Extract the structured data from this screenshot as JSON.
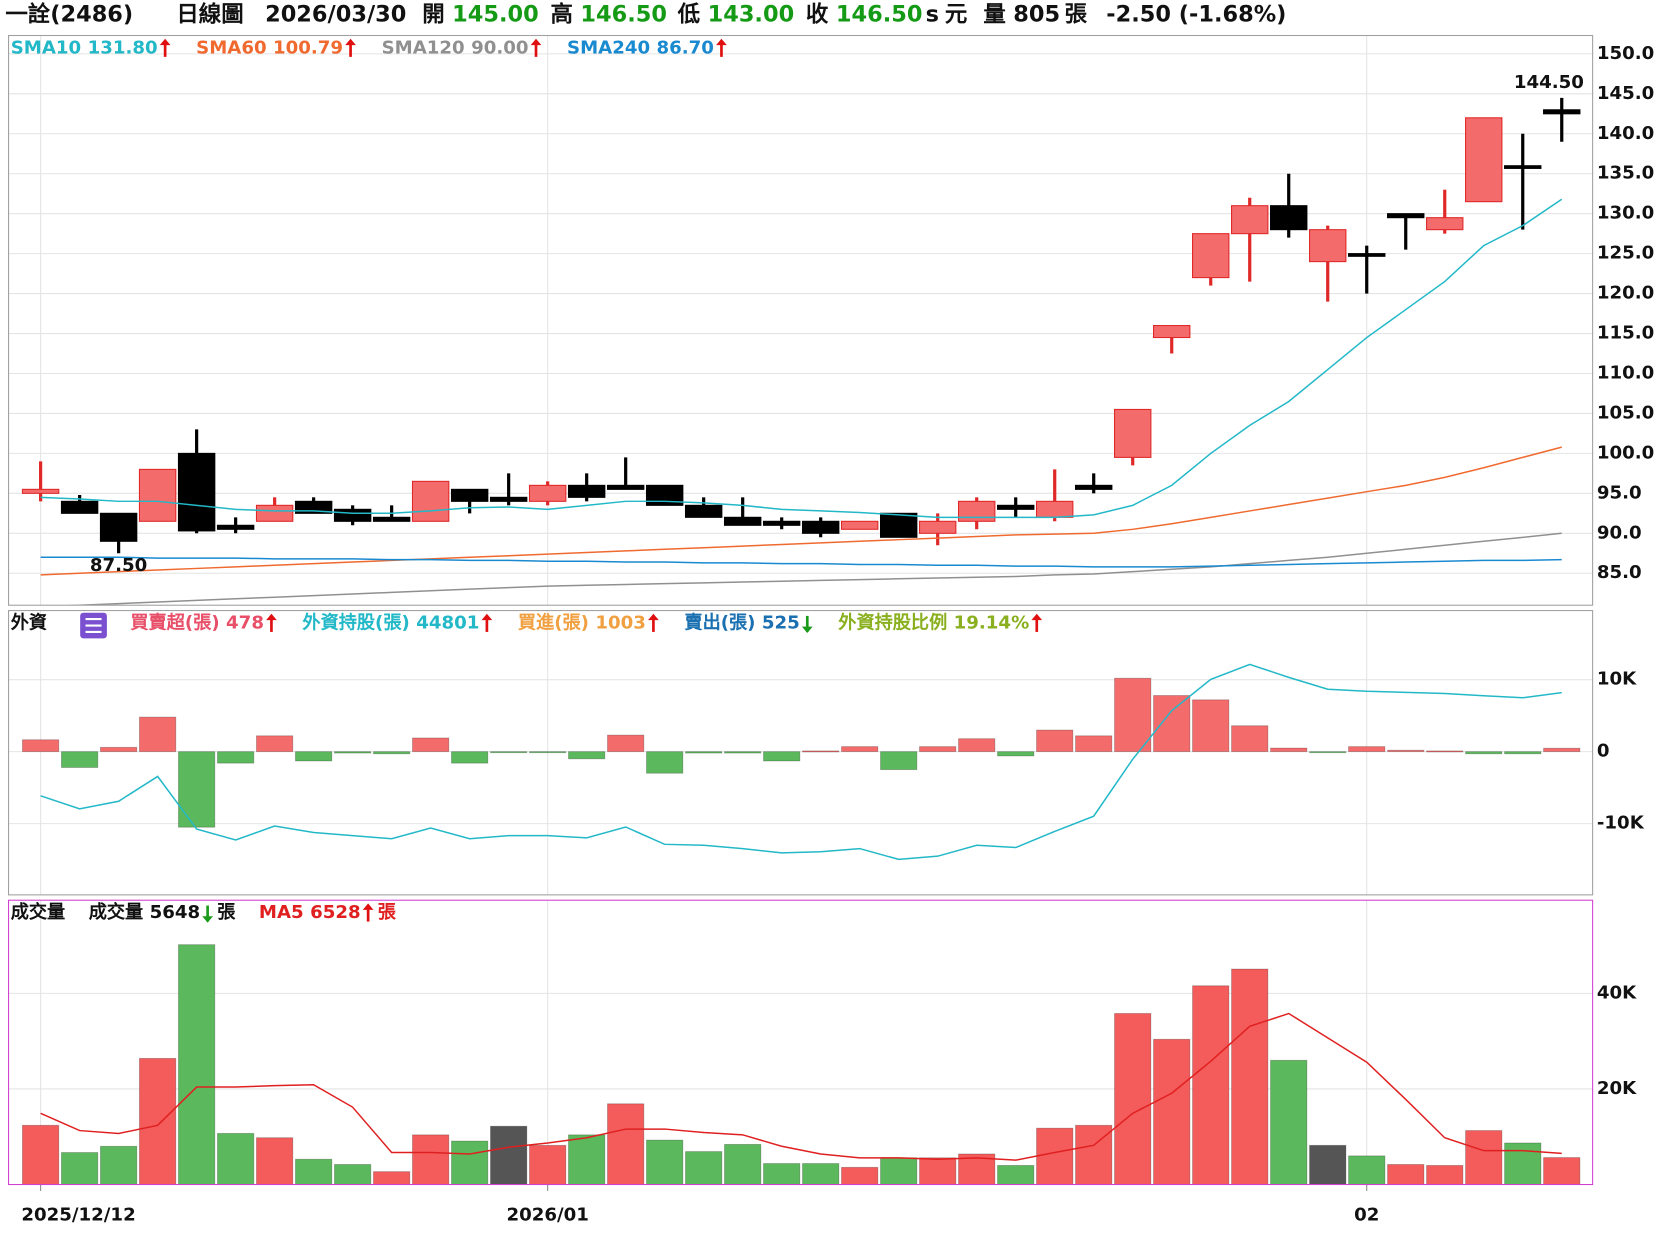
{
  "header": {
    "stock": "一詮(2486)",
    "period": "日線圖",
    "date": "2026/03/30",
    "open_label": "開",
    "open": "145.00",
    "high_label": "高",
    "high": "146.50",
    "low_label": "低",
    "low": "143.00",
    "close_label": "收",
    "close": "146.50",
    "s": "s",
    "currency": "元",
    "volume_label": "量",
    "volume": "805",
    "volume_unit": "張",
    "change": "-2.50 (-1.68%)"
  },
  "chart_data": [
    {
      "type": "candlestick",
      "open": [
        95.0,
        94.0,
        92.5,
        91.5,
        100.0,
        91.0,
        91.5,
        94.0,
        93.0,
        92.0,
        91.5,
        95.5,
        94.5,
        94.0,
        96.0,
        96.0,
        96.0,
        93.5,
        92.0,
        91.5,
        91.5,
        90.5,
        92.5,
        90.0,
        91.5,
        93.5,
        92.0,
        96.0,
        99.5,
        114.5,
        122.0,
        127.5,
        131.0,
        124.0,
        125.0,
        130.0,
        128.0,
        131.5,
        136.0,
        143.0
      ],
      "high": [
        99.0,
        94.8,
        92.5,
        98.0,
        103.0,
        92.0,
        94.5,
        94.5,
        93.5,
        93.5,
        96.5,
        95.5,
        97.5,
        96.5,
        97.5,
        99.5,
        96.0,
        94.5,
        94.5,
        92.0,
        92.0,
        91.5,
        92.5,
        92.5,
        94.5,
        94.5,
        98.0,
        97.5,
        105.5,
        116.0,
        127.5,
        132.0,
        135.0,
        128.5,
        126.0,
        130.0,
        133.0,
        142.0,
        140.0,
        144.5
      ],
      "low": [
        94.0,
        92.5,
        87.5,
        91.5,
        90.0,
        90.0,
        91.5,
        92.5,
        91.0,
        91.5,
        91.5,
        92.5,
        93.5,
        93.5,
        94.0,
        95.5,
        93.5,
        92.0,
        91.0,
        90.5,
        89.5,
        90.5,
        89.5,
        88.5,
        90.5,
        92.0,
        91.5,
        95.0,
        98.5,
        112.5,
        121.0,
        121.5,
        127.0,
        119.0,
        120.0,
        125.5,
        127.5,
        131.5,
        128.0,
        139.0
      ],
      "close": [
        95.5,
        92.5,
        89.0,
        98.0,
        90.3,
        90.5,
        93.5,
        92.5,
        91.5,
        91.5,
        96.5,
        94.0,
        94.0,
        96.0,
        94.5,
        95.5,
        93.5,
        92.0,
        91.0,
        91.0,
        90.0,
        91.5,
        89.5,
        91.5,
        94.0,
        93.0,
        94.0,
        95.5,
        105.5,
        116.0,
        127.5,
        131.0,
        128.0,
        128.0,
        125.0,
        129.5,
        129.5,
        142.0,
        136.0,
        142.5
      ],
      "high_value_labels": [
        null,
        null,
        null,
        null,
        null,
        null,
        null,
        null,
        null,
        null,
        null,
        null,
        null,
        null,
        null,
        null,
        null,
        null,
        null,
        null,
        null,
        null,
        null,
        null,
        null,
        null,
        null,
        null,
        null,
        null,
        null,
        null,
        null,
        null,
        null,
        null,
        null,
        null,
        null,
        "144.50"
      ],
      "low_value_labels": [
        null,
        null,
        "87.50",
        null,
        null,
        null,
        null,
        null,
        null,
        null,
        null,
        null,
        null,
        null,
        null,
        null,
        null,
        null,
        null,
        null,
        null,
        null,
        null,
        null,
        null,
        null,
        null,
        null,
        null,
        null,
        null,
        null,
        null,
        null,
        null,
        null,
        null,
        null,
        null,
        null
      ],
      "up_color": "#f46b6b",
      "down_color": "#000000",
      "ylim": [
        81.0,
        152.3
      ],
      "yticks": [
        {
          "value": 85,
          "label": "85.0"
        },
        {
          "value": 90,
          "label": "90.0"
        },
        {
          "value": 95,
          "label": "95.0"
        },
        {
          "value": 100,
          "label": "100.0"
        },
        {
          "value": 105,
          "label": "105.0"
        },
        {
          "value": 110,
          "label": "110.0"
        },
        {
          "value": 115,
          "label": "115.0"
        },
        {
          "value": 120,
          "label": "120.0"
        },
        {
          "value": 125,
          "label": "125.0"
        },
        {
          "value": 130,
          "label": "130.0"
        },
        {
          "value": 135,
          "label": "135.0"
        },
        {
          "value": 140,
          "label": "140.0"
        },
        {
          "value": 145,
          "label": "145.0"
        },
        {
          "value": 150,
          "label": "150.0"
        }
      ],
      "grid": true,
      "series": [
        {
          "name": "SMA10",
          "type": "line",
          "color": "#22b8c8",
          "value_label": "131.80",
          "direction": "up",
          "values": [
            94.5,
            94.3,
            94.0,
            94.0,
            93.5,
            93.0,
            92.8,
            92.8,
            92.5,
            92.5,
            92.8,
            93.2,
            93.3,
            93.0,
            93.5,
            94.0,
            94.0,
            93.8,
            93.5,
            93.0,
            92.8,
            92.6,
            92.3,
            92.0,
            92.0,
            92.0,
            92.0,
            92.3,
            93.5,
            96.0,
            100.0,
            103.5,
            106.5,
            110.5,
            114.5,
            118.0,
            121.5,
            126.0,
            128.5,
            131.8
          ]
        },
        {
          "name": "SMA60",
          "type": "line",
          "color": "#f06a30",
          "value_label": "100.79",
          "direction": "up",
          "values": [
            84.8,
            85.0,
            85.2,
            85.4,
            85.6,
            85.8,
            86.0,
            86.2,
            86.4,
            86.6,
            86.8,
            87.0,
            87.2,
            87.4,
            87.6,
            87.8,
            88.0,
            88.2,
            88.4,
            88.6,
            88.8,
            89.0,
            89.2,
            89.4,
            89.6,
            89.8,
            89.9,
            90.0,
            90.5,
            91.2,
            92.0,
            92.8,
            93.6,
            94.4,
            95.2,
            96.0,
            97.0,
            98.2,
            99.5,
            100.79
          ]
        },
        {
          "name": "SMA120",
          "type": "line",
          "color": "#909090",
          "value_label": "90.00",
          "direction": "up",
          "values": [
            80.8,
            81.0,
            81.2,
            81.4,
            81.6,
            81.8,
            82.0,
            82.2,
            82.4,
            82.6,
            82.8,
            83.0,
            83.2,
            83.4,
            83.5,
            83.6,
            83.7,
            83.8,
            83.9,
            84.0,
            84.1,
            84.2,
            84.3,
            84.4,
            84.5,
            84.6,
            84.8,
            84.9,
            85.2,
            85.5,
            85.8,
            86.2,
            86.6,
            87.0,
            87.5,
            88.0,
            88.5,
            89.0,
            89.5,
            90.0
          ]
        },
        {
          "name": "SMA240",
          "type": "line",
          "color": "#1a8ad0",
          "value_label": "86.70",
          "direction": "up",
          "values": [
            87.0,
            87.0,
            87.0,
            86.9,
            86.9,
            86.9,
            86.8,
            86.8,
            86.8,
            86.7,
            86.7,
            86.6,
            86.6,
            86.5,
            86.5,
            86.4,
            86.4,
            86.3,
            86.3,
            86.2,
            86.2,
            86.1,
            86.1,
            86.0,
            86.0,
            85.9,
            85.9,
            85.8,
            85.8,
            85.8,
            85.9,
            86.0,
            86.1,
            86.2,
            86.3,
            86.4,
            86.5,
            86.6,
            86.6,
            86.7
          ]
        }
      ]
    },
    {
      "type": "bar",
      "title": "外資",
      "ylim": [
        -19900,
        19600
      ],
      "yticks": [
        {
          "value": 10000,
          "label": "10K"
        },
        0,
        {
          "value": -10000,
          "label": "-10K"
        }
      ],
      "y2lim": [
        32000,
        50000
      ],
      "up_color": "#f46b6b",
      "down_color": "#5cb85c",
      "series": [
        {
          "name": "買賣超(張)",
          "type": "bar",
          "color": "#e8506a",
          "value_label": "478",
          "direction": "up",
          "values": [
            1650,
            -2200,
            600,
            4800,
            -10500,
            -1600,
            2200,
            -1300,
            -200,
            -300,
            1900,
            -1600,
            -100,
            -100,
            -1000,
            2300,
            -3000,
            -200,
            -200,
            -1300,
            100,
            700,
            -2500,
            700,
            1800,
            -600,
            3000,
            2200,
            10200,
            7800,
            7200,
            3600,
            500,
            -100,
            700,
            200,
            100,
            -300,
            -300,
            478
          ]
        },
        {
          "name": "外資持股(張)",
          "type": "line",
          "axis": "y2",
          "color": "#22b8c8",
          "value_label": "44801",
          "direction": "up",
          "values": [
            38270,
            37450,
            37930,
            39500,
            36160,
            35480,
            36360,
            35950,
            35750,
            35550,
            36230,
            35550,
            35750,
            35750,
            35610,
            36300,
            35200,
            35140,
            34930,
            34660,
            34730,
            34930,
            34250,
            34450,
            35140,
            35000,
            36020,
            36980,
            40590,
            43660,
            45640,
            46590,
            45770,
            45020,
            44890,
            44820,
            44750,
            44610,
            44480,
            44801
          ]
        }
      ],
      "legend": [
        {
          "name": "買進(張)",
          "color": "#f0a040",
          "value_label": "1003",
          "direction": "up"
        },
        {
          "name": "賣出(張)",
          "color": "#1a70b0",
          "value_label": "525",
          "direction": "down"
        },
        {
          "name": "外資持股比例",
          "color": "#8ab020",
          "value_label": "19.14%",
          "direction": "up"
        }
      ]
    },
    {
      "type": "bar",
      "title": "成交量",
      "categories": [
        "2025/12/12",
        null,
        null,
        null,
        null,
        null,
        null,
        null,
        null,
        null,
        null,
        null,
        null,
        "2026/01",
        null,
        null,
        null,
        null,
        null,
        null,
        null,
        null,
        null,
        null,
        null,
        null,
        null,
        null,
        null,
        null,
        null,
        null,
        null,
        null,
        "02",
        null,
        null,
        null,
        null,
        null
      ],
      "ylim": [
        0,
        59500
      ],
      "yticks": [
        {
          "value": 20000,
          "label": "20K"
        },
        {
          "value": 40000,
          "label": "40K"
        }
      ],
      "series": [
        {
          "name": "成交量",
          "type": "bar",
          "color": "#111111",
          "value_label": "5648",
          "direction": "down",
          "unit": "張",
          "values": [
            12400,
            6700,
            8000,
            26400,
            50200,
            10700,
            9800,
            5300,
            4200,
            2700,
            10400,
            9100,
            12200,
            8200,
            10400,
            16900,
            9300,
            6900,
            8400,
            4400,
            4400,
            3600,
            5600,
            5600,
            6400,
            4000,
            11800,
            12400,
            35800,
            30400,
            41600,
            45100,
            26000,
            8200,
            6000,
            4200,
            4000,
            11300,
            8700,
            5648
          ],
          "colors": [
            "#f45b5b",
            "#5cb85c",
            "#5cb85c",
            "#f45b5b",
            "#5cb85c",
            "#5cb85c",
            "#f45b5b",
            "#5cb85c",
            "#5cb85c",
            "#f45b5b",
            "#f45b5b",
            "#5cb85c",
            "#555555",
            "#f45b5b",
            "#5cb85c",
            "#f45b5b",
            "#5cb85c",
            "#5cb85c",
            "#5cb85c",
            "#5cb85c",
            "#5cb85c",
            "#f45b5b",
            "#5cb85c",
            "#f45b5b",
            "#f45b5b",
            "#5cb85c",
            "#f45b5b",
            "#f45b5b",
            "#f45b5b",
            "#f45b5b",
            "#f45b5b",
            "#f45b5b",
            "#5cb85c",
            "#555555",
            "#5cb85c",
            "#f45b5b",
            "#f45b5b",
            "#f45b5b",
            "#5cb85c",
            "#f45b5b"
          ]
        },
        {
          "name": "MA5",
          "type": "line",
          "color": "#e02020",
          "value_label": "6528",
          "direction": "up",
          "unit": "張",
          "values": [
            14900,
            11300,
            10700,
            12400,
            20400,
            20400,
            20700,
            20900,
            16200,
            6700,
            6700,
            6400,
            7800,
            8700,
            9800,
            11600,
            11600,
            10900,
            10400,
            8000,
            6400,
            5600,
            5600,
            5300,
            5600,
            5100,
            6700,
            8200,
            14900,
            19100,
            25800,
            33100,
            35800,
            30700,
            25600,
            17800,
            9800,
            7100,
            7100,
            6528
          ]
        }
      ]
    }
  ]
}
